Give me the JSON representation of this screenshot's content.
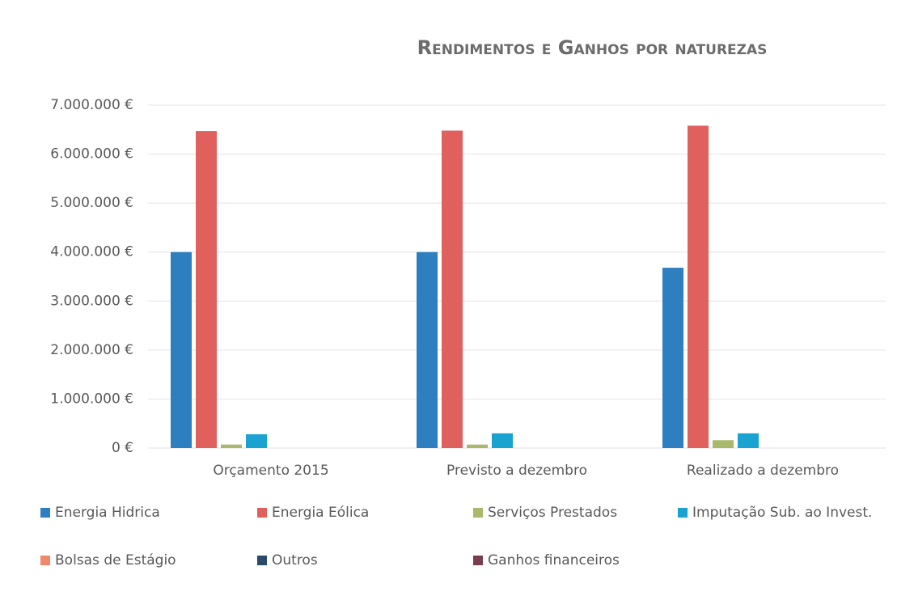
{
  "chart_data": {
    "type": "bar",
    "title": "Rendimentos e Ganhos por naturezas",
    "categories": [
      "Orçamento 2015",
      "Previsto a dezembro",
      "Realizado a dezembro"
    ],
    "series": [
      {
        "name": "Energia Hidrica",
        "color": "#2e7fbf",
        "values": [
          4000000,
          4000000,
          3680000
        ]
      },
      {
        "name": "Energia Eólica",
        "color": "#e0605e",
        "values": [
          6470000,
          6480000,
          6580000
        ]
      },
      {
        "name": "Serviços Prestados",
        "color": "#a9b86a",
        "values": [
          70000,
          70000,
          160000
        ]
      },
      {
        "name": "Imputação Sub. ao Invest.",
        "color": "#1aa3d0",
        "values": [
          280000,
          300000,
          300000
        ]
      },
      {
        "name": "Bolsas de Estágio",
        "color": "#f0896c",
        "values": [
          0,
          0,
          0
        ]
      },
      {
        "name": "Outros",
        "color": "#2a4a6a",
        "values": [
          0,
          0,
          0
        ]
      },
      {
        "name": "Ganhos financeiros",
        "color": "#7a3f4f",
        "values": [
          0,
          0,
          0
        ]
      }
    ],
    "ylim": [
      0,
      7000000
    ],
    "yticks": [
      {
        "value": 0,
        "label": "0 €"
      },
      {
        "value": 1000000,
        "label": "1.000.000 €"
      },
      {
        "value": 2000000,
        "label": "2.000.000 €"
      },
      {
        "value": 3000000,
        "label": "3.000.000 €"
      },
      {
        "value": 4000000,
        "label": "4.000.000 €"
      },
      {
        "value": 5000000,
        "label": "5.000.000 €"
      },
      {
        "value": 6000000,
        "label": "6.000.000 €"
      },
      {
        "value": 7000000,
        "label": "7.000.000 €"
      }
    ],
    "grid": true
  }
}
